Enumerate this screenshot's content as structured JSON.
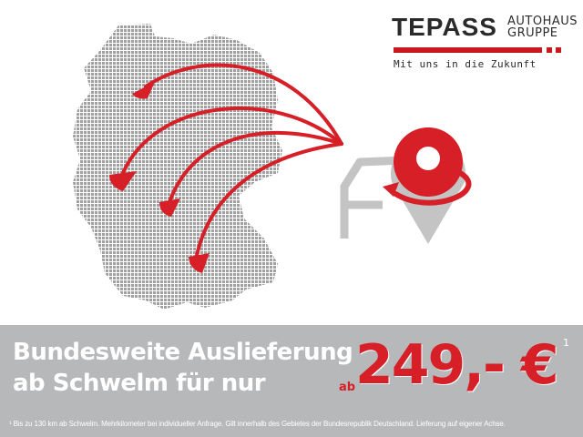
{
  "logo": {
    "brand": "TEPASS",
    "line1": "AUTOHAUS",
    "line2": "GRUPPE",
    "tagline": "Mit uns in die Zukunft"
  },
  "headline": {
    "line1": "Bundesweite Auslieferung",
    "line2": "ab Schwelm für nur"
  },
  "price": {
    "prefix": "ab",
    "amount": "249,- €",
    "footnote_mark": "1"
  },
  "footnote": "¹ Bis zu 130 km ab Schwelm. Mehrkilometer bei individueller Anfrage. Gilt innerhalb des Gebietes der Bundesrepublik Deutschland. Lieferung auf eigener Achse.",
  "colors": {
    "accent": "#d61f26",
    "band": "#b7b8ba",
    "map": "#9a9a9a",
    "car": "#c4c4c4"
  }
}
